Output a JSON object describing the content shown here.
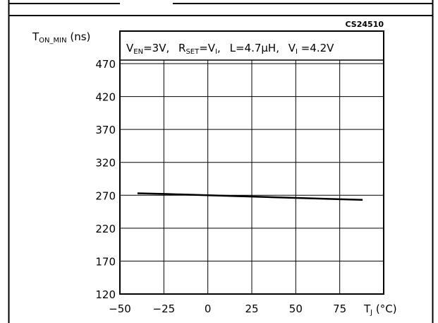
{
  "reference_code": "CS24510",
  "conditions": {
    "ven_main": "V",
    "ven_sub": "EN",
    "ven_value": "=3V,",
    "rset_main": "R",
    "rset_sub": "SET",
    "rset_mid": "=V",
    "rset_sub2": "I",
    "rset_end": ",",
    "l_text": "L=4.7µH,",
    "vi_main": "V",
    "vi_sub": "I",
    "vi_value": " =4.2V"
  },
  "chart_data": {
    "type": "line",
    "ylabel_main": "T",
    "ylabel_sub": "ON_MIN",
    "ylabel_unit": " (ns)",
    "xlabel_main": "T",
    "xlabel_sub": "J",
    "xlabel_unit": " (°C)",
    "xlim": [
      -50,
      100
    ],
    "ylim": [
      120,
      470
    ],
    "x_ticks": [
      -50,
      -25,
      0,
      25,
      50,
      75
    ],
    "x_tick_labels": [
      "−50",
      "−25",
      "0",
      "25",
      "50",
      "75"
    ],
    "y_ticks": [
      120,
      170,
      220,
      270,
      320,
      370,
      420,
      470
    ],
    "y_tick_labels": [
      "120",
      "170",
      "220",
      "270",
      "320",
      "370",
      "420",
      "470"
    ],
    "grid": true,
    "series": [
      {
        "x": [
          -40,
          -25,
          0,
          25,
          50,
          75,
          88
        ],
        "y": [
          273,
          272,
          270,
          268,
          266,
          264,
          263
        ]
      }
    ]
  }
}
